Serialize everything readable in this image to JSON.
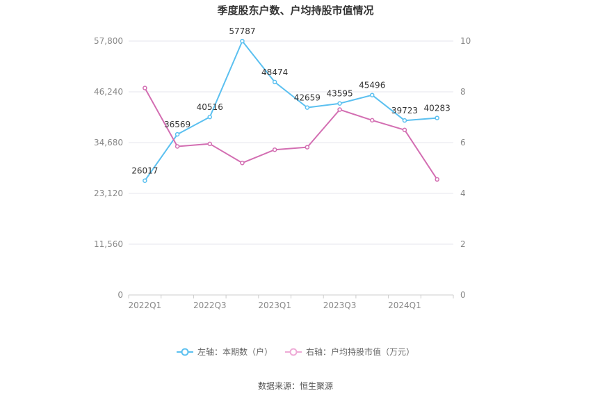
{
  "chart_data": {
    "type": "line",
    "title": "季度股东户数、户均持股市值情况",
    "x": [
      "2022Q1",
      "2022Q2",
      "2022Q3",
      "2022Q4",
      "2023Q1",
      "2023Q2",
      "2023Q3",
      "2023Q4",
      "2024Q1",
      "2024Q2"
    ],
    "x_tick_labels": [
      "2022Q1",
      "2022Q3",
      "2023Q1",
      "2023Q3",
      "2024Q1"
    ],
    "left_axis": {
      "ylim": [
        0,
        57800
      ],
      "ticks": [
        "0",
        "11,560",
        "23,120",
        "34,680",
        "46,240",
        "57,800"
      ]
    },
    "right_axis": {
      "ylim": [
        0,
        10
      ],
      "ticks": [
        "0",
        "2",
        "4",
        "6",
        "8",
        "10"
      ]
    },
    "series": [
      {
        "name": "左轴：本期数（户）",
        "axis": "left",
        "color": "#5bc0f0",
        "values": [
          26017,
          36569,
          40516,
          57787,
          48474,
          42659,
          43595,
          45496,
          39723,
          40283
        ],
        "labels": [
          "26017",
          "36569",
          "40516",
          "57787",
          "48474",
          "42659",
          "43595",
          "45496",
          "39723",
          "40283"
        ]
      },
      {
        "name": "右轴：户均持股市值（万元）",
        "axis": "right",
        "color": "#d36eb2",
        "values": [
          8.15,
          5.85,
          5.95,
          5.2,
          5.72,
          5.82,
          7.3,
          6.88,
          6.5,
          4.55
        ]
      }
    ],
    "grid": true,
    "legend_position": "bottom"
  },
  "source_text": "数据来源：恒生聚源"
}
